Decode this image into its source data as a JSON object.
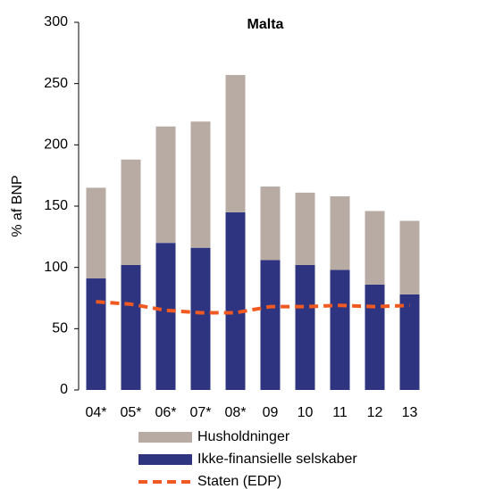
{
  "chart_data": {
    "type": "bar",
    "stacked": true,
    "title": "Malta",
    "y_label": "% af BNP",
    "categories": [
      "04*",
      "05*",
      "06*",
      "07*",
      "08*",
      "09",
      "10",
      "11",
      "12",
      "13"
    ],
    "series": [
      {
        "name": "Husholdninger",
        "color": "#b8aba4",
        "values": [
          74,
          86,
          95,
          103,
          112,
          60,
          59,
          60,
          60,
          60
        ]
      },
      {
        "name": "Ikke-finansielle selskaber",
        "color": "#2e3480",
        "values": [
          91,
          102,
          120,
          116,
          145,
          106,
          102,
          98,
          86,
          78
        ]
      },
      {
        "name": "Staten (EDP)",
        "color": "#f05a22",
        "type": "line",
        "dashed": true,
        "values": [
          72,
          70,
          65,
          63,
          63,
          68,
          68,
          69,
          68,
          69
        ]
      }
    ],
    "ylim": [
      0,
      300
    ],
    "yticks": [
      0,
      50,
      100,
      150,
      200,
      250,
      300
    ],
    "grid": false
  }
}
